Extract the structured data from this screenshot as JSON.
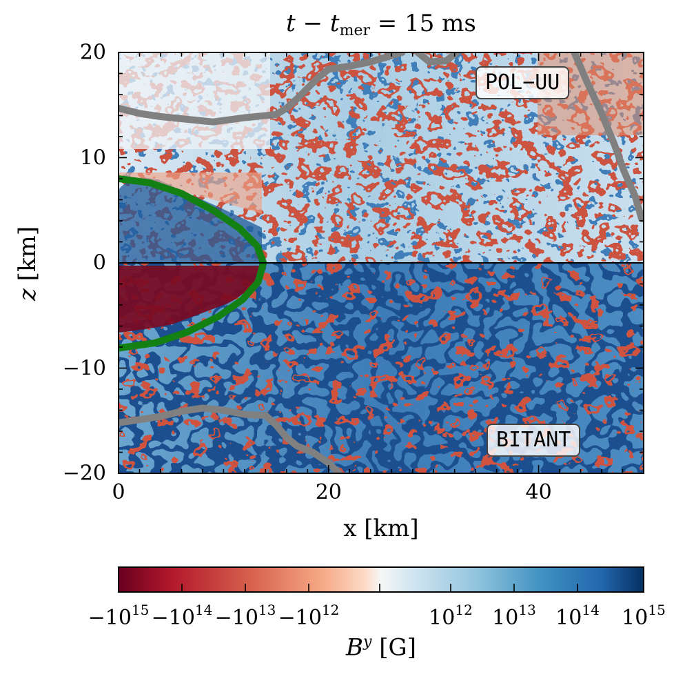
{
  "chart_data": {
    "type": "heatmap",
    "title": "t − t",
    "title_subscript": "mer",
    "title_rest": " = 15 ms",
    "xlabel": "x [km]",
    "ylabel_var": "z",
    "ylabel_unit": " [km]",
    "xlim": [
      0,
      50
    ],
    "ylim": [
      -20,
      20
    ],
    "xticks": [
      {
        "value": 0,
        "label": "0"
      },
      {
        "value": 20,
        "label": "20"
      },
      {
        "value": 40,
        "label": "40"
      }
    ],
    "yticks": [
      {
        "value": 20,
        "label": "20"
      },
      {
        "value": 10,
        "label": "10"
      },
      {
        "value": 0,
        "label": "0"
      },
      {
        "value": -10,
        "label": "−10"
      },
      {
        "value": -20,
        "label": "−20"
      }
    ],
    "panels": [
      {
        "label": "POL−UU",
        "z_range": [
          0,
          20
        ]
      },
      {
        "label": "BITANT",
        "z_range": [
          -20,
          0
        ]
      }
    ],
    "colorbar": {
      "label_var": "B",
      "label_sup": "y",
      "label_unit": " [G]",
      "colormap": "RdBu",
      "ticks": [
        {
          "base": "−10",
          "exp": "15"
        },
        {
          "base": "−10",
          "exp": "14"
        },
        {
          "base": "−10",
          "exp": "13"
        },
        {
          "base": "−10",
          "exp": "12"
        },
        {
          "base": "10",
          "exp": "12"
        },
        {
          "base": "10",
          "exp": "13"
        },
        {
          "base": "10",
          "exp": "14"
        },
        {
          "base": "10",
          "exp": "15"
        }
      ]
    },
    "contours": [
      {
        "name": "green-contour",
        "color": "#128012",
        "points": [
          [
            0,
            8
          ],
          [
            3,
            7.6
          ],
          [
            6,
            6.6
          ],
          [
            9,
            5
          ],
          [
            11.5,
            3.3
          ],
          [
            13.2,
            1.6
          ],
          [
            13.8,
            0
          ],
          [
            13.3,
            -1.8
          ],
          [
            11.8,
            -3.5
          ],
          [
            9.5,
            -5.1
          ],
          [
            6.5,
            -6.6
          ],
          [
            3.5,
            -7.6
          ],
          [
            0,
            -8.1
          ]
        ]
      },
      {
        "name": "gray-contour-upper",
        "color": "#808080",
        "points": [
          [
            0,
            14.7
          ],
          [
            2,
            14.2
          ],
          [
            4,
            13.9
          ],
          [
            7,
            13.6
          ],
          [
            9,
            13.4
          ],
          [
            12,
            13.8
          ],
          [
            15,
            14.1
          ],
          [
            16,
            14.7
          ],
          [
            17,
            15.6
          ],
          [
            18,
            16.6
          ],
          [
            19,
            17.6
          ],
          [
            20,
            18.4
          ],
          [
            22,
            18.7
          ],
          [
            24,
            19.1
          ],
          [
            26,
            19.7
          ],
          [
            27,
            20
          ]
        ]
      },
      {
        "name": "gray-contour-upper-b",
        "color": "#808080",
        "points": [
          [
            28.5,
            20
          ],
          [
            29.6,
            19.1
          ],
          [
            31.2,
            19.2
          ],
          [
            32.2,
            20
          ]
        ]
      },
      {
        "name": "gray-contour-right",
        "color": "#808080",
        "points": [
          [
            43.4,
            20
          ],
          [
            44.6,
            17.2
          ],
          [
            46,
            14.2
          ],
          [
            47.2,
            11.3
          ],
          [
            48.1,
            8.8
          ],
          [
            49.2,
            6.3
          ],
          [
            49.8,
            4.2
          ]
        ]
      },
      {
        "name": "gray-contour-lower",
        "color": "#808080",
        "points": [
          [
            0,
            -15.2
          ],
          [
            2,
            -14.9
          ],
          [
            4,
            -14.6
          ],
          [
            6,
            -14.1
          ],
          [
            8,
            -13.8
          ],
          [
            10,
            -14.0
          ],
          [
            12,
            -14.4
          ],
          [
            14,
            -14.5
          ],
          [
            15,
            -15.4
          ],
          [
            16,
            -16.6
          ],
          [
            17,
            -17.4
          ],
          [
            18.5,
            -18.0
          ],
          [
            20,
            -19.0
          ],
          [
            21,
            -20
          ]
        ]
      }
    ]
  }
}
